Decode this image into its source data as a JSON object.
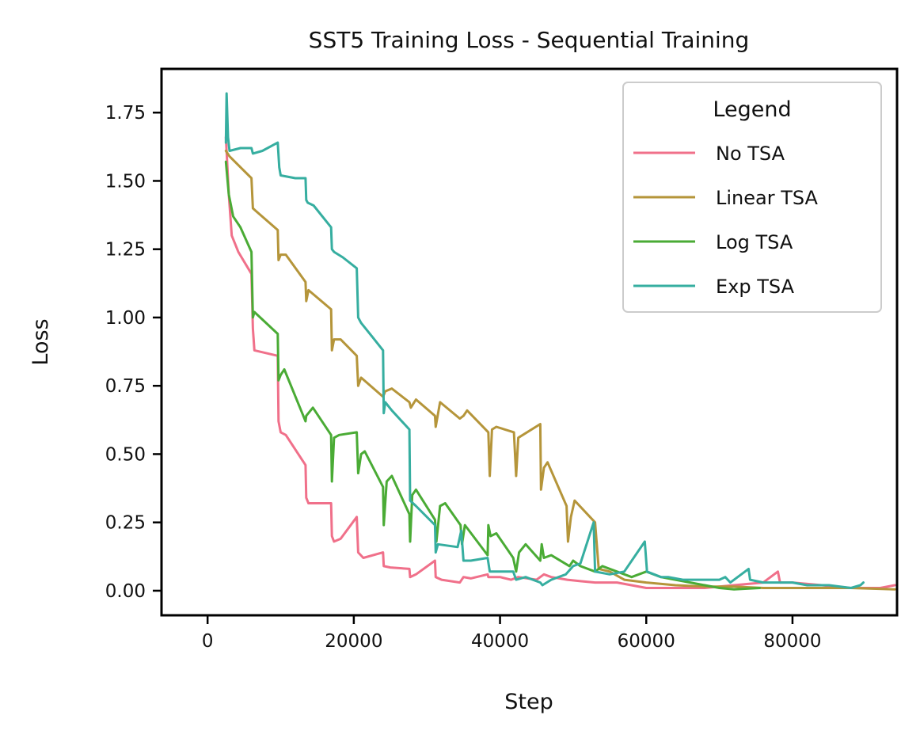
{
  "chart_data": {
    "type": "line",
    "title": "SST5 Training Loss - Sequential Training",
    "xlabel": "Step",
    "ylabel": "Loss",
    "xlim": [
      -6300,
      94300
    ],
    "ylim": [
      -0.09,
      1.91
    ],
    "x_ticks": [
      0,
      20000,
      40000,
      60000,
      80000
    ],
    "x_tick_labels": [
      "0",
      "20000",
      "40000",
      "60000",
      "80000"
    ],
    "y_ticks": [
      0.0,
      0.25,
      0.5,
      0.75,
      1.0,
      1.25,
      1.5,
      1.75
    ],
    "y_tick_labels": [
      "0.00",
      "0.25",
      "0.50",
      "0.75",
      "1.00",
      "1.25",
      "1.50",
      "1.75"
    ],
    "grid": false,
    "legend": {
      "title": "Legend",
      "position": "top-right"
    },
    "series": [
      {
        "name": "No TSA",
        "color": "#f0708a",
        "points": [
          [
            2500,
            1.66
          ],
          [
            2900,
            1.45
          ],
          [
            3300,
            1.3
          ],
          [
            4200,
            1.24
          ],
          [
            6000,
            1.16
          ],
          [
            6200,
            0.96
          ],
          [
            6400,
            0.88
          ],
          [
            9600,
            0.86
          ],
          [
            9700,
            0.62
          ],
          [
            10000,
            0.58
          ],
          [
            10700,
            0.57
          ],
          [
            13400,
            0.46
          ],
          [
            13500,
            0.34
          ],
          [
            13800,
            0.32
          ],
          [
            16900,
            0.32
          ],
          [
            17000,
            0.2
          ],
          [
            17300,
            0.18
          ],
          [
            18200,
            0.19
          ],
          [
            20400,
            0.27
          ],
          [
            20600,
            0.14
          ],
          [
            21300,
            0.12
          ],
          [
            24000,
            0.14
          ],
          [
            24100,
            0.09
          ],
          [
            25000,
            0.085
          ],
          [
            27600,
            0.08
          ],
          [
            27700,
            0.05
          ],
          [
            28500,
            0.06
          ],
          [
            31100,
            0.11
          ],
          [
            31200,
            0.05
          ],
          [
            32000,
            0.04
          ],
          [
            34500,
            0.03
          ],
          [
            35000,
            0.05
          ],
          [
            36000,
            0.045
          ],
          [
            38300,
            0.06
          ],
          [
            38400,
            0.05
          ],
          [
            40000,
            0.05
          ],
          [
            41500,
            0.04
          ],
          [
            42500,
            0.05
          ],
          [
            45000,
            0.04
          ],
          [
            46000,
            0.06
          ],
          [
            47000,
            0.05
          ],
          [
            49200,
            0.04
          ],
          [
            51000,
            0.035
          ],
          [
            53000,
            0.03
          ],
          [
            56000,
            0.03
          ],
          [
            60000,
            0.01
          ],
          [
            64000,
            0.01
          ],
          [
            68000,
            0.01
          ],
          [
            72000,
            0.02
          ],
          [
            76000,
            0.03
          ],
          [
            78000,
            0.07
          ],
          [
            78300,
            0.03
          ],
          [
            80000,
            0.03
          ],
          [
            84000,
            0.02
          ],
          [
            88000,
            0.01
          ],
          [
            92000,
            0.01
          ],
          [
            94000,
            0.02
          ]
        ]
      },
      {
        "name": "Linear TSA",
        "color": "#b5953a",
        "points": [
          [
            2500,
            1.61
          ],
          [
            3000,
            1.59
          ],
          [
            4500,
            1.55
          ],
          [
            6000,
            1.51
          ],
          [
            6200,
            1.4
          ],
          [
            6600,
            1.39
          ],
          [
            9600,
            1.32
          ],
          [
            9700,
            1.21
          ],
          [
            10000,
            1.23
          ],
          [
            10700,
            1.23
          ],
          [
            13400,
            1.13
          ],
          [
            13500,
            1.06
          ],
          [
            13800,
            1.1
          ],
          [
            16900,
            1.03
          ],
          [
            17000,
            0.88
          ],
          [
            17300,
            0.92
          ],
          [
            18200,
            0.92
          ],
          [
            20400,
            0.86
          ],
          [
            20600,
            0.75
          ],
          [
            21000,
            0.78
          ],
          [
            24000,
            0.71
          ],
          [
            24300,
            0.73
          ],
          [
            25200,
            0.74
          ],
          [
            27600,
            0.69
          ],
          [
            27800,
            0.67
          ],
          [
            28500,
            0.7
          ],
          [
            31100,
            0.64
          ],
          [
            31200,
            0.6
          ],
          [
            31800,
            0.69
          ],
          [
            34500,
            0.63
          ],
          [
            35000,
            0.64
          ],
          [
            35500,
            0.66
          ],
          [
            38400,
            0.58
          ],
          [
            38600,
            0.42
          ],
          [
            38900,
            0.59
          ],
          [
            39500,
            0.6
          ],
          [
            41900,
            0.58
          ],
          [
            42200,
            0.42
          ],
          [
            42500,
            0.56
          ],
          [
            45500,
            0.61
          ],
          [
            45600,
            0.37
          ],
          [
            46000,
            0.45
          ],
          [
            46500,
            0.47
          ],
          [
            49100,
            0.31
          ],
          [
            49300,
            0.18
          ],
          [
            49700,
            0.27
          ],
          [
            50200,
            0.33
          ],
          [
            53000,
            0.25
          ],
          [
            53500,
            0.08
          ],
          [
            55000,
            0.07
          ],
          [
            57000,
            0.04
          ],
          [
            60000,
            0.03
          ],
          [
            64000,
            0.02
          ],
          [
            68000,
            0.015
          ],
          [
            72000,
            0.015
          ],
          [
            76000,
            0.01
          ],
          [
            80000,
            0.01
          ],
          [
            84000,
            0.01
          ],
          [
            88000,
            0.01
          ],
          [
            94000,
            0.005
          ]
        ]
      },
      {
        "name": "Log TSA",
        "color": "#4aab35",
        "points": [
          [
            2500,
            1.57
          ],
          [
            2900,
            1.45
          ],
          [
            3500,
            1.37
          ],
          [
            4500,
            1.33
          ],
          [
            6000,
            1.24
          ],
          [
            6200,
            1.0
          ],
          [
            6400,
            1.02
          ],
          [
            9600,
            0.94
          ],
          [
            9700,
            0.77
          ],
          [
            10000,
            0.79
          ],
          [
            10500,
            0.81
          ],
          [
            13400,
            0.62
          ],
          [
            13500,
            0.64
          ],
          [
            14400,
            0.67
          ],
          [
            16900,
            0.57
          ],
          [
            17000,
            0.4
          ],
          [
            17300,
            0.56
          ],
          [
            18000,
            0.57
          ],
          [
            20400,
            0.58
          ],
          [
            20600,
            0.43
          ],
          [
            21000,
            0.5
          ],
          [
            21500,
            0.51
          ],
          [
            24000,
            0.38
          ],
          [
            24100,
            0.24
          ],
          [
            24500,
            0.4
          ],
          [
            25200,
            0.42
          ],
          [
            27600,
            0.28
          ],
          [
            27700,
            0.18
          ],
          [
            28000,
            0.35
          ],
          [
            28500,
            0.37
          ],
          [
            31100,
            0.26
          ],
          [
            31300,
            0.18
          ],
          [
            31800,
            0.31
          ],
          [
            32500,
            0.32
          ],
          [
            34600,
            0.24
          ],
          [
            34800,
            0.17
          ],
          [
            35200,
            0.24
          ],
          [
            38300,
            0.13
          ],
          [
            38400,
            0.24
          ],
          [
            38700,
            0.2
          ],
          [
            39500,
            0.21
          ],
          [
            41800,
            0.12
          ],
          [
            42200,
            0.07
          ],
          [
            42600,
            0.14
          ],
          [
            43500,
            0.17
          ],
          [
            45500,
            0.11
          ],
          [
            45700,
            0.17
          ],
          [
            46000,
            0.12
          ],
          [
            47000,
            0.13
          ],
          [
            49500,
            0.09
          ],
          [
            50000,
            0.11
          ],
          [
            51000,
            0.09
          ],
          [
            53000,
            0.07
          ],
          [
            54000,
            0.09
          ],
          [
            56000,
            0.07
          ],
          [
            58000,
            0.05
          ],
          [
            60000,
            0.07
          ],
          [
            62000,
            0.05
          ],
          [
            64000,
            0.04
          ],
          [
            66000,
            0.03
          ],
          [
            68000,
            0.02
          ],
          [
            70000,
            0.01
          ],
          [
            72000,
            0.005
          ],
          [
            75500,
            0.01
          ]
        ]
      },
      {
        "name": "Exp TSA",
        "color": "#36aea0",
        "points": [
          [
            2500,
            1.64
          ],
          [
            2600,
            1.82
          ],
          [
            2800,
            1.66
          ],
          [
            3000,
            1.61
          ],
          [
            4500,
            1.62
          ],
          [
            6000,
            1.62
          ],
          [
            6200,
            1.6
          ],
          [
            7500,
            1.61
          ],
          [
            9600,
            1.64
          ],
          [
            9800,
            1.55
          ],
          [
            10000,
            1.52
          ],
          [
            12000,
            1.51
          ],
          [
            13400,
            1.51
          ],
          [
            13500,
            1.43
          ],
          [
            13700,
            1.42
          ],
          [
            14500,
            1.41
          ],
          [
            16900,
            1.33
          ],
          [
            17000,
            1.25
          ],
          [
            17300,
            1.24
          ],
          [
            18500,
            1.22
          ],
          [
            20400,
            1.18
          ],
          [
            20600,
            1.0
          ],
          [
            21000,
            0.98
          ],
          [
            22500,
            0.93
          ],
          [
            24000,
            0.88
          ],
          [
            24100,
            0.65
          ],
          [
            24300,
            0.69
          ],
          [
            25200,
            0.66
          ],
          [
            27600,
            0.59
          ],
          [
            27700,
            0.33
          ],
          [
            28500,
            0.31
          ],
          [
            31100,
            0.24
          ],
          [
            31200,
            0.14
          ],
          [
            31500,
            0.17
          ],
          [
            34200,
            0.16
          ],
          [
            34700,
            0.22
          ],
          [
            35000,
            0.11
          ],
          [
            36000,
            0.11
          ],
          [
            38300,
            0.12
          ],
          [
            38600,
            0.07
          ],
          [
            40000,
            0.07
          ],
          [
            41800,
            0.07
          ],
          [
            42200,
            0.04
          ],
          [
            43500,
            0.05
          ],
          [
            45500,
            0.03
          ],
          [
            45800,
            0.02
          ],
          [
            47000,
            0.04
          ],
          [
            49000,
            0.06
          ],
          [
            50000,
            0.09
          ],
          [
            51000,
            0.1
          ],
          [
            52800,
            0.25
          ],
          [
            53000,
            0.07
          ],
          [
            55000,
            0.06
          ],
          [
            57000,
            0.07
          ],
          [
            59800,
            0.18
          ],
          [
            60100,
            0.07
          ],
          [
            62000,
            0.05
          ],
          [
            63000,
            0.05
          ],
          [
            65000,
            0.04
          ],
          [
            67000,
            0.04
          ],
          [
            70000,
            0.04
          ],
          [
            70800,
            0.05
          ],
          [
            71500,
            0.03
          ],
          [
            74000,
            0.08
          ],
          [
            74200,
            0.04
          ],
          [
            76000,
            0.03
          ],
          [
            78000,
            0.03
          ],
          [
            80000,
            0.03
          ],
          [
            82000,
            0.02
          ],
          [
            85000,
            0.02
          ],
          [
            88000,
            0.01
          ],
          [
            89300,
            0.02
          ],
          [
            89700,
            0.03
          ]
        ]
      }
    ]
  }
}
